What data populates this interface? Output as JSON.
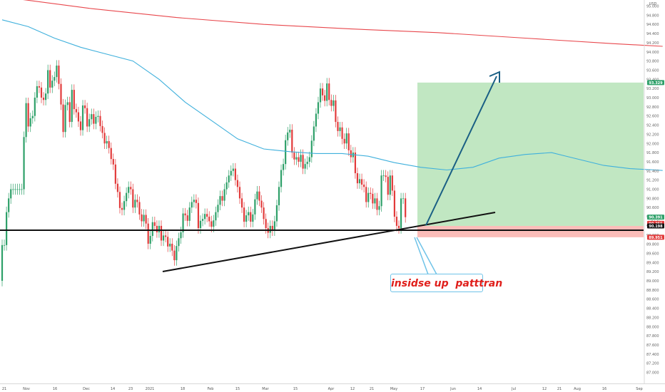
{
  "chart_data": {
    "type": "candlestick",
    "currency_label": "USD",
    "y_ticks": [
      "95.000",
      "94.800",
      "94.600",
      "94.400",
      "94.200",
      "94.000",
      "93.800",
      "93.600",
      "93.400",
      "93.200",
      "93.000",
      "92.800",
      "92.600",
      "92.400",
      "92.200",
      "92.000",
      "91.800",
      "91.600",
      "91.400",
      "91.200",
      "91.000",
      "90.800",
      "90.600",
      "90.400",
      "90.200",
      "90.000",
      "89.800",
      "89.600",
      "89.400",
      "89.200",
      "89.000",
      "88.800",
      "88.600",
      "88.400",
      "88.200",
      "88.000",
      "87.800",
      "87.600",
      "87.400",
      "87.200",
      "87.000"
    ],
    "ylim": [
      86.95,
      95.05
    ],
    "x_ticks": [
      "21",
      "Nov",
      "16",
      "Dec",
      "14",
      "23",
      "2021",
      "18",
      "Feb",
      "15",
      "Mar",
      "15",
      "Apr",
      "12",
      "21",
      "May",
      "17",
      "Jun",
      "14",
      "Jul",
      "12",
      "21",
      "Aug",
      "16",
      "Sep"
    ],
    "price_labels": {
      "target": "93.329",
      "current": "90.391",
      "countdown": "2d 4h",
      "level_a": "90.255",
      "entry": "90.198",
      "stop": "89.951"
    },
    "series": [
      {
        "name": "MA 200",
        "color": "#e8474c",
        "points": [
          [
            0,
            95.2
          ],
          [
            40,
            94.95
          ],
          [
            80,
            94.75
          ],
          [
            120,
            94.6
          ],
          [
            160,
            94.5
          ],
          [
            200,
            94.42
          ],
          [
            240,
            94.3
          ],
          [
            280,
            94.18
          ],
          [
            303,
            94.12
          ]
        ]
      },
      {
        "name": "MA 50",
        "color": "#3fb0dc",
        "points": [
          [
            0,
            94.7
          ],
          [
            12,
            94.55
          ],
          [
            24,
            94.3
          ],
          [
            36,
            94.1
          ],
          [
            48,
            93.95
          ],
          [
            60,
            93.8
          ],
          [
            72,
            93.4
          ],
          [
            84,
            92.9
          ],
          [
            96,
            92.5
          ],
          [
            108,
            92.1
          ],
          [
            120,
            91.88
          ],
          [
            132,
            91.82
          ],
          [
            144,
            91.78
          ],
          [
            156,
            91.78
          ],
          [
            168,
            91.72
          ],
          [
            180,
            91.58
          ],
          [
            192,
            91.48
          ],
          [
            204,
            91.42
          ],
          [
            216,
            91.48
          ],
          [
            228,
            91.68
          ],
          [
            240,
            91.76
          ],
          [
            252,
            91.8
          ],
          [
            258,
            91.73
          ],
          [
            264,
            91.66
          ],
          [
            276,
            91.52
          ],
          [
            288,
            91.45
          ],
          [
            300,
            91.42
          ],
          [
            303,
            91.41
          ]
        ]
      }
    ],
    "candles": [
      [
        89.0,
        89.78
      ],
      [
        89.78,
        89.78
      ],
      [
        89.78,
        90.5
      ],
      [
        90.5,
        90.8
      ],
      [
        90.8,
        91.0
      ],
      [
        91.0,
        91.0
      ],
      [
        91.0,
        91.0
      ],
      [
        91.0,
        91.0
      ],
      [
        91.0,
        91.0
      ],
      [
        91.0,
        91.0
      ],
      [
        91.0,
        92.14
      ],
      [
        92.14,
        92.88
      ],
      [
        92.88,
        92.37
      ],
      [
        92.37,
        92.55
      ],
      [
        92.55,
        92.6
      ],
      [
        92.6,
        93.0
      ],
      [
        93.0,
        93.25
      ],
      [
        93.25,
        93.22
      ],
      [
        93.22,
        93.0
      ],
      [
        93.0,
        92.95
      ],
      [
        92.95,
        93.09
      ],
      [
        93.09,
        93.6
      ],
      [
        93.6,
        93.22
      ],
      [
        93.22,
        93.37
      ],
      [
        93.37,
        93.45
      ],
      [
        93.45,
        93.7
      ],
      [
        93.7,
        93.3
      ],
      [
        93.3,
        92.85
      ],
      [
        92.85,
        92.25
      ],
      [
        92.25,
        92.84
      ],
      [
        92.84,
        92.9
      ],
      [
        92.9,
        92.47
      ],
      [
        92.47,
        93.17
      ],
      [
        93.17,
        92.75
      ],
      [
        92.75,
        92.68
      ],
      [
        92.68,
        92.48
      ],
      [
        92.48,
        92.29
      ],
      [
        92.29,
        92.83
      ],
      [
        92.83,
        92.77
      ],
      [
        92.77,
        92.37
      ],
      [
        92.37,
        92.53
      ],
      [
        92.53,
        92.64
      ],
      [
        92.64,
        92.43
      ],
      [
        92.43,
        92.58
      ],
      [
        92.58,
        92.6
      ],
      [
        92.6,
        92.38
      ],
      [
        92.38,
        92.23
      ],
      [
        92.23,
        92.0
      ],
      [
        92.0,
        92.05
      ],
      [
        92.05,
        91.9
      ],
      [
        91.9,
        91.66
      ],
      [
        91.66,
        91.54
      ],
      [
        91.54,
        91.12
      ],
      [
        91.12,
        90.94
      ],
      [
        90.94,
        90.59
      ],
      [
        90.59,
        90.55
      ],
      [
        90.55,
        90.74
      ],
      [
        90.74,
        90.92
      ],
      [
        90.92,
        91.05
      ],
      [
        91.05,
        91.0
      ],
      [
        91.0,
        90.6
      ],
      [
        90.6,
        90.77
      ],
      [
        90.77,
        90.72
      ],
      [
        90.72,
        90.45
      ],
      [
        90.45,
        90.3
      ],
      [
        90.3,
        90.44
      ],
      [
        90.44,
        90.25
      ],
      [
        90.25,
        89.81
      ],
      [
        89.81,
        89.98
      ],
      [
        89.98,
        90.28
      ],
      [
        90.28,
        90.2
      ],
      [
        90.2,
        90.06
      ],
      [
        90.06,
        90.2
      ],
      [
        90.2,
        89.88
      ],
      [
        89.88,
        89.99
      ],
      [
        89.99,
        89.96
      ],
      [
        89.96,
        89.75
      ],
      [
        89.75,
        89.81
      ],
      [
        89.81,
        89.66
      ],
      [
        89.66,
        89.45
      ],
      [
        89.45,
        89.76
      ],
      [
        89.76,
        89.93
      ],
      [
        89.93,
        90.06
      ],
      [
        90.06,
        90.47
      ],
      [
        90.47,
        90.43
      ],
      [
        90.43,
        90.31
      ],
      [
        90.31,
        90.6
      ],
      [
        90.6,
        90.72
      ],
      [
        90.72,
        90.77
      ],
      [
        90.77,
        90.7
      ],
      [
        90.7,
        90.15
      ],
      [
        90.15,
        90.31
      ],
      [
        90.31,
        90.35
      ],
      [
        90.35,
        90.46
      ],
      [
        90.46,
        90.4
      ],
      [
        90.4,
        90.3
      ],
      [
        90.3,
        90.18
      ],
      [
        90.18,
        90.32
      ],
      [
        90.32,
        90.5
      ],
      [
        90.5,
        90.66
      ],
      [
        90.66,
        90.85
      ],
      [
        90.85,
        90.75
      ],
      [
        90.75,
        91.0
      ],
      [
        91.0,
        91.15
      ],
      [
        91.15,
        91.3
      ],
      [
        91.3,
        91.4
      ],
      [
        91.4,
        91.45
      ],
      [
        91.45,
        91.2
      ],
      [
        91.2,
        91.05
      ],
      [
        91.05,
        90.8
      ],
      [
        90.8,
        90.6
      ],
      [
        90.6,
        90.29
      ],
      [
        90.29,
        90.43
      ],
      [
        90.43,
        90.5
      ],
      [
        90.5,
        90.29
      ],
      [
        90.29,
        90.45
      ],
      [
        90.45,
        90.78
      ],
      [
        90.78,
        90.95
      ],
      [
        90.95,
        90.75
      ],
      [
        90.75,
        90.6
      ],
      [
        90.6,
        90.35
      ],
      [
        90.35,
        90.15
      ],
      [
        90.15,
        90.05
      ],
      [
        90.05,
        90.2
      ],
      [
        90.2,
        90.1
      ],
      [
        90.1,
        90.3
      ],
      [
        90.3,
        90.65
      ],
      [
        90.65,
        91.05
      ],
      [
        91.05,
        91.42
      ],
      [
        91.42,
        91.55
      ],
      [
        91.55,
        92.07
      ],
      [
        92.07,
        92.24
      ],
      [
        92.24,
        92.3
      ],
      [
        92.3,
        91.8
      ],
      [
        91.8,
        91.65
      ],
      [
        91.65,
        91.7
      ],
      [
        91.7,
        91.6
      ],
      [
        91.6,
        91.75
      ],
      [
        91.75,
        91.45
      ],
      [
        91.45,
        91.55
      ],
      [
        91.55,
        91.6
      ],
      [
        91.6,
        91.7
      ],
      [
        91.7,
        92.06
      ],
      [
        92.06,
        92.37
      ],
      [
        92.37,
        92.65
      ],
      [
        92.65,
        92.9
      ],
      [
        92.9,
        93.2
      ],
      [
        93.2,
        93.05
      ],
      [
        93.05,
        92.93
      ],
      [
        92.93,
        93.31
      ],
      [
        93.31,
        92.95
      ],
      [
        92.95,
        92.82
      ],
      [
        92.82,
        92.94
      ],
      [
        92.94,
        92.47
      ],
      [
        92.47,
        92.27
      ],
      [
        92.27,
        92.35
      ],
      [
        92.35,
        92.1
      ],
      [
        92.1,
        92.0
      ],
      [
        92.0,
        92.22
      ],
      [
        92.22,
        91.85
      ],
      [
        91.85,
        91.7
      ],
      [
        91.7,
        91.8
      ],
      [
        91.8,
        91.35
      ],
      [
        91.35,
        91.13
      ],
      [
        91.13,
        91.22
      ],
      [
        91.22,
        91.1
      ],
      [
        91.1,
        91.05
      ],
      [
        91.05,
        90.72
      ],
      [
        90.72,
        90.92
      ],
      [
        90.92,
        90.9
      ],
      [
        90.9,
        90.69
      ],
      [
        90.69,
        90.8
      ],
      [
        90.8,
        90.55
      ],
      [
        90.55,
        90.63
      ],
      [
        90.63,
        91.3
      ],
      [
        91.3,
        91.3
      ],
      [
        91.3,
        91.27
      ],
      [
        91.27,
        90.88
      ],
      [
        90.88,
        91.3
      ],
      [
        91.3,
        90.97
      ],
      [
        90.97,
        90.4
      ],
      [
        90.4,
        90.2
      ],
      [
        90.2,
        90.15
      ],
      [
        90.15,
        90.8
      ],
      [
        90.8,
        90.8
      ],
      [
        90.8,
        90.39
      ]
    ],
    "long_position": {
      "target": 93.329,
      "entry": 90.198,
      "stop": 89.951
    },
    "annotation_text": "insidse up  patttran"
  }
}
